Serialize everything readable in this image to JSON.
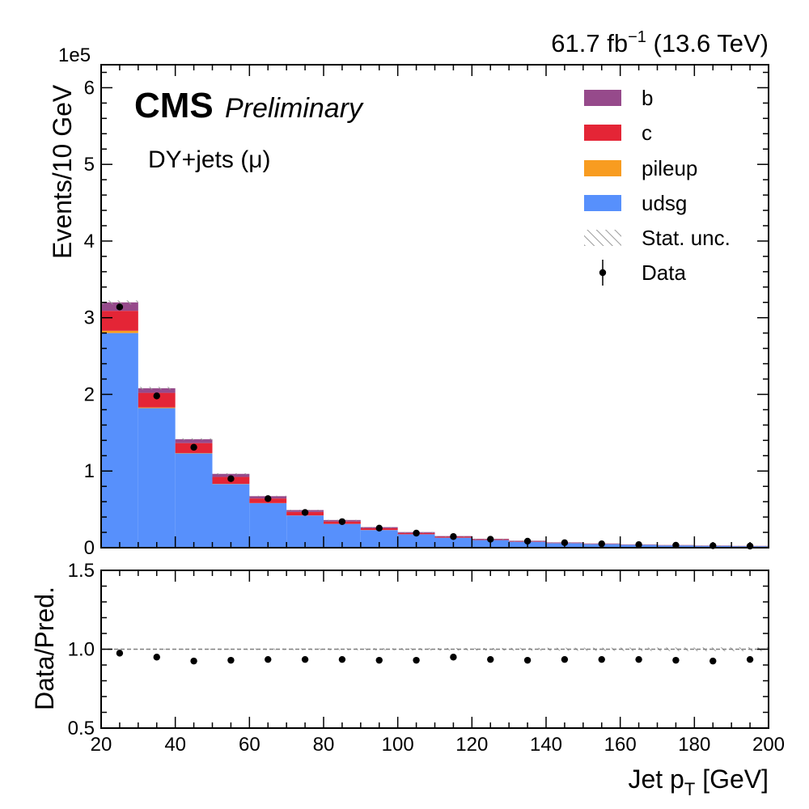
{
  "chart_data": [
    {
      "type": "bar",
      "stacked": true,
      "x_edges": [
        20,
        30,
        40,
        50,
        60,
        70,
        80,
        90,
        100,
        110,
        120,
        130,
        140,
        150,
        160,
        170,
        180,
        190,
        200
      ],
      "series": [
        {
          "name": "udsg",
          "color": "#5790fc",
          "values": [
            2.8,
            1.82,
            1.23,
            0.83,
            0.58,
            0.42,
            0.31,
            0.23,
            0.175,
            0.13,
            0.1,
            0.078,
            0.06,
            0.047,
            0.037,
            0.03,
            0.025,
            0.02
          ]
        },
        {
          "name": "pileup",
          "color": "#f89c20",
          "values": [
            0.03,
            0.01,
            0.005,
            0.003,
            0.002,
            0.001,
            0.001,
            0.001,
            0.0005,
            0.0005,
            0.0005,
            0.0005,
            0.0003,
            0.0003,
            0.0003,
            0.0002,
            0.0002,
            0.0002
          ]
        },
        {
          "name": "c",
          "color": "#e42536",
          "values": [
            0.26,
            0.19,
            0.13,
            0.09,
            0.06,
            0.045,
            0.03,
            0.022,
            0.016,
            0.012,
            0.009,
            0.007,
            0.005,
            0.004,
            0.003,
            0.0025,
            0.002,
            0.0018
          ]
        },
        {
          "name": "b",
          "color": "#964a8b",
          "values": [
            0.11,
            0.06,
            0.05,
            0.04,
            0.03,
            0.025,
            0.02,
            0.015,
            0.012,
            0.009,
            0.007,
            0.006,
            0.005,
            0.004,
            0.003,
            0.0025,
            0.002,
            0.0018
          ]
        }
      ],
      "data": {
        "name": "Data",
        "x": [
          25,
          35,
          45,
          55,
          65,
          75,
          85,
          95,
          105,
          115,
          125,
          135,
          145,
          155,
          165,
          175,
          185,
          195
        ],
        "y": [
          3.14,
          1.98,
          1.31,
          0.9,
          0.64,
          0.46,
          0.34,
          0.255,
          0.19,
          0.145,
          0.11,
          0.085,
          0.065,
          0.051,
          0.04,
          0.032,
          0.026,
          0.021
        ]
      },
      "stat_unc_label": "Stat. unc.",
      "ylabel": "Events/10 GeV",
      "y_scale_label": "1e5",
      "ylim": [
        0,
        6.3
      ],
      "yticks": [
        "0",
        "1",
        "2",
        "3",
        "4",
        "5",
        "6"
      ],
      "legend_position": "top-right",
      "annotation": "DY+jets (μ)"
    },
    {
      "type": "scatter",
      "x": [
        25,
        35,
        45,
        55,
        65,
        75,
        85,
        95,
        105,
        115,
        125,
        135,
        145,
        155,
        165,
        175,
        185,
        195
      ],
      "y": [
        0.975,
        0.95,
        0.925,
        0.93,
        0.935,
        0.935,
        0.935,
        0.93,
        0.93,
        0.95,
        0.935,
        0.93,
        0.935,
        0.935,
        0.935,
        0.93,
        0.925,
        0.935
      ],
      "reference_line": 1.0,
      "ylabel": "Data/Pred.",
      "ylim": [
        0.5,
        1.5
      ],
      "yticks": [
        "0.5",
        "1.0",
        "1.5"
      ],
      "xlabel_main": "Jet p",
      "xlabel_sub": "T",
      "xlabel_unit": " [GeV]",
      "xlim": [
        20,
        200
      ],
      "xticks": [
        "20",
        "40",
        "60",
        "80",
        "100",
        "120",
        "140",
        "160",
        "180",
        "200"
      ]
    }
  ],
  "header": {
    "cms": "CMS",
    "preliminary": "Preliminary",
    "lumi_value": "61.7 fb",
    "lumi_exp": "−1",
    "energy": " (13.6 TeV)"
  }
}
